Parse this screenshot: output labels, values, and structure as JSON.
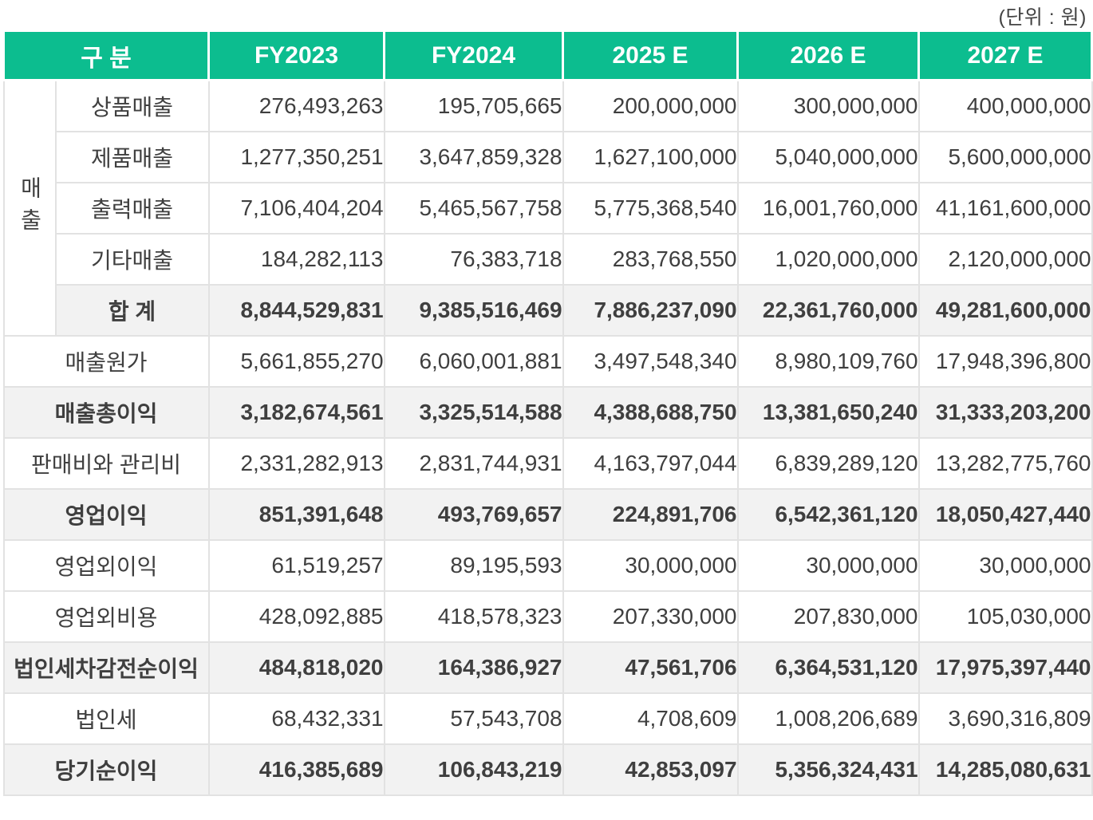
{
  "unit_label": "(단위 : 원)",
  "colors": {
    "header_green": "#0cbd8f",
    "header_text": "#ffffff",
    "row_highlight": "#f2f2f2",
    "border": "#e2e2e2",
    "text": "#3f3f3f"
  },
  "table": {
    "columns": [
      "구 분",
      "FY2023",
      "FY2024",
      "2025 E",
      "2026 E",
      "2027 E"
    ],
    "rows": [
      {
        "group": "매출",
        "group_span": 5,
        "label": "상품매출",
        "emphasis": false,
        "values": [
          "276,493,263",
          "195,705,665",
          "200,000,000",
          "300,000,000",
          "400,000,000"
        ]
      },
      {
        "label": "제품매출",
        "emphasis": false,
        "values": [
          "1,277,350,251",
          "3,647,859,328",
          "1,627,100,000",
          "5,040,000,000",
          "5,600,000,000"
        ]
      },
      {
        "label": "출력매출",
        "emphasis": false,
        "values": [
          "7,106,404,204",
          "5,465,567,758",
          "5,775,368,540",
          "16,001,760,000",
          "41,161,600,000"
        ]
      },
      {
        "label": "기타매출",
        "emphasis": false,
        "values": [
          "184,282,113",
          "76,383,718",
          "283,768,550",
          "1,020,000,000",
          "2,120,000,000"
        ]
      },
      {
        "label": "합 계",
        "emphasis": true,
        "values": [
          "8,844,529,831",
          "9,385,516,469",
          "7,886,237,090",
          "22,361,760,000",
          "49,281,600,000"
        ]
      },
      {
        "label": "매출원가",
        "full": true,
        "emphasis": false,
        "values": [
          "5,661,855,270",
          "6,060,001,881",
          "3,497,548,340",
          "8,980,109,760",
          "17,948,396,800"
        ]
      },
      {
        "label": "매출총이익",
        "full": true,
        "emphasis": true,
        "values": [
          "3,182,674,561",
          "3,325,514,588",
          "4,388,688,750",
          "13,381,650,240",
          "31,333,203,200"
        ]
      },
      {
        "label": "판매비와 관리비",
        "full": true,
        "emphasis": false,
        "values": [
          "2,331,282,913",
          "2,831,744,931",
          "4,163,797,044",
          "6,839,289,120",
          "13,282,775,760"
        ]
      },
      {
        "label": "영업이익",
        "full": true,
        "emphasis": true,
        "values": [
          "851,391,648",
          "493,769,657",
          "224,891,706",
          "6,542,361,120",
          "18,050,427,440"
        ]
      },
      {
        "label": "영업외이익",
        "full": true,
        "emphasis": false,
        "values": [
          "61,519,257",
          "89,195,593",
          "30,000,000",
          "30,000,000",
          "30,000,000"
        ]
      },
      {
        "label": "영업외비용",
        "full": true,
        "emphasis": false,
        "values": [
          "428,092,885",
          "418,578,323",
          "207,330,000",
          "207,830,000",
          "105,030,000"
        ]
      },
      {
        "label": "법인세차감전순이익",
        "full": true,
        "emphasis": true,
        "values": [
          "484,818,020",
          "164,386,927",
          "47,561,706",
          "6,364,531,120",
          "17,975,397,440"
        ]
      },
      {
        "label": "법인세",
        "full": true,
        "emphasis": false,
        "values": [
          "68,432,331",
          "57,543,708",
          "4,708,609",
          "1,008,206,689",
          "3,690,316,809"
        ]
      },
      {
        "label": "당기순이익",
        "full": true,
        "emphasis": true,
        "values": [
          "416,385,689",
          "106,843,219",
          "42,853,097",
          "5,356,324,431",
          "14,285,080,631"
        ]
      }
    ]
  }
}
